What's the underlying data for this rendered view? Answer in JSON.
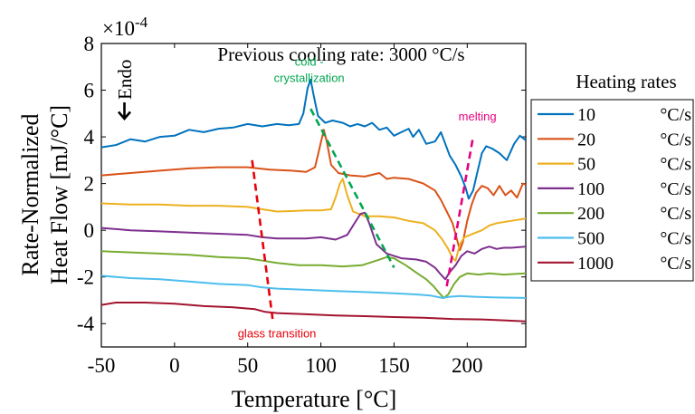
{
  "chart_data": {
    "type": "line",
    "title": "Previous cooling rate: 3000 °C/s",
    "xlabel": "Temperature [°C]",
    "ylabel_line1": "Rate-Normalized",
    "ylabel_line2": "Heat Flow [mJ/°C]",
    "y_exponent_label": "×10",
    "y_exponent_power": "-4",
    "xlim": [
      -50,
      240
    ],
    "ylim": [
      -5,
      8
    ],
    "x_ticks": [
      -50,
      0,
      50,
      100,
      150,
      200
    ],
    "x_tick_labels": [
      "-50",
      "0",
      "50",
      "100",
      "150",
      "200"
    ],
    "y_ticks": [
      -4,
      -2,
      0,
      2,
      4,
      6,
      8
    ],
    "y_tick_labels": [
      "-4",
      "-2",
      "0",
      "2",
      "4",
      "6",
      "8"
    ],
    "endo_label": "Endo",
    "legend": {
      "title": "Heating rates",
      "placement": "outside-right",
      "unit": "°C/s"
    },
    "series": [
      {
        "name": "10",
        "color": "#0072BD",
        "points": [
          [
            -50,
            3.55
          ],
          [
            -40,
            3.65
          ],
          [
            -30,
            3.9
          ],
          [
            -20,
            3.8
          ],
          [
            -10,
            4.0
          ],
          [
            0,
            4.05
          ],
          [
            10,
            4.3
          ],
          [
            20,
            4.2
          ],
          [
            30,
            4.35
          ],
          [
            40,
            4.4
          ],
          [
            50,
            4.55
          ],
          [
            60,
            4.45
          ],
          [
            70,
            4.55
          ],
          [
            78,
            4.5
          ],
          [
            85,
            4.55
          ],
          [
            88,
            5.0
          ],
          [
            91,
            6.1
          ],
          [
            93,
            6.45
          ],
          [
            95,
            5.8
          ],
          [
            98,
            4.9
          ],
          [
            103,
            4.6
          ],
          [
            108,
            4.7
          ],
          [
            115,
            4.6
          ],
          [
            120,
            4.45
          ],
          [
            125,
            4.55
          ],
          [
            130,
            4.45
          ],
          [
            135,
            4.6
          ],
          [
            140,
            4.3
          ],
          [
            145,
            4.4
          ],
          [
            150,
            4.05
          ],
          [
            155,
            4.2
          ],
          [
            160,
            4.35
          ],
          [
            163,
            4.0
          ],
          [
            167,
            4.3
          ],
          [
            172,
            3.7
          ],
          [
            178,
            3.8
          ],
          [
            182,
            4.2
          ],
          [
            185,
            3.7
          ],
          [
            188,
            3.2
          ],
          [
            192,
            2.8
          ],
          [
            196,
            2.3
          ],
          [
            199,
            1.8
          ],
          [
            201,
            1.35
          ],
          [
            204,
            1.7
          ],
          [
            207,
            2.5
          ],
          [
            210,
            3.3
          ],
          [
            213,
            3.6
          ],
          [
            217,
            3.5
          ],
          [
            222,
            3.3
          ],
          [
            227,
            3.0
          ],
          [
            232,
            3.7
          ],
          [
            236,
            4.05
          ],
          [
            240,
            3.85
          ]
        ]
      },
      {
        "name": "20",
        "color": "#D95319",
        "points": [
          [
            -50,
            2.35
          ],
          [
            -30,
            2.45
          ],
          [
            -10,
            2.55
          ],
          [
            10,
            2.65
          ],
          [
            30,
            2.7
          ],
          [
            50,
            2.7
          ],
          [
            65,
            2.6
          ],
          [
            80,
            2.55
          ],
          [
            90,
            2.5
          ],
          [
            96,
            2.7
          ],
          [
            99,
            3.5
          ],
          [
            102,
            4.3
          ],
          [
            104,
            3.8
          ],
          [
            107,
            2.8
          ],
          [
            112,
            2.45
          ],
          [
            120,
            2.35
          ],
          [
            130,
            2.3
          ],
          [
            140,
            2.45
          ],
          [
            145,
            2.2
          ],
          [
            150,
            2.25
          ],
          [
            160,
            2.2
          ],
          [
            170,
            2.0
          ],
          [
            178,
            1.7
          ],
          [
            182,
            1.3
          ],
          [
            186,
            0.8
          ],
          [
            190,
            0.3
          ],
          [
            193,
            -0.4
          ],
          [
            195,
            -0.85
          ],
          [
            197,
            -0.5
          ],
          [
            200,
            0.4
          ],
          [
            203,
            1.1
          ],
          [
            206,
            1.6
          ],
          [
            210,
            1.9
          ],
          [
            214,
            1.8
          ],
          [
            218,
            1.5
          ],
          [
            222,
            1.9
          ],
          [
            226,
            1.5
          ],
          [
            230,
            1.7
          ],
          [
            234,
            1.4
          ],
          [
            238,
            2.0
          ],
          [
            240,
            1.95
          ]
        ]
      },
      {
        "name": "50",
        "color": "#EDB120",
        "points": [
          [
            -50,
            1.15
          ],
          [
            -30,
            1.1
          ],
          [
            -10,
            1.1
          ],
          [
            10,
            1.05
          ],
          [
            30,
            1.05
          ],
          [
            50,
            1.0
          ],
          [
            60,
            0.9
          ],
          [
            70,
            0.8
          ],
          [
            80,
            0.82
          ],
          [
            90,
            0.85
          ],
          [
            100,
            0.85
          ],
          [
            107,
            0.9
          ],
          [
            110,
            1.4
          ],
          [
            113,
            2.0
          ],
          [
            115,
            2.2
          ],
          [
            118,
            1.5
          ],
          [
            122,
            0.8
          ],
          [
            130,
            0.6
          ],
          [
            140,
            0.6
          ],
          [
            150,
            0.55
          ],
          [
            160,
            0.4
          ],
          [
            170,
            0.3
          ],
          [
            178,
            0.0
          ],
          [
            183,
            -0.4
          ],
          [
            187,
            -0.8
          ],
          [
            190,
            -1.2
          ],
          [
            192,
            -1.3
          ],
          [
            195,
            -0.6
          ],
          [
            198,
            -0.3
          ],
          [
            202,
            -0.2
          ],
          [
            206,
            -0.1
          ],
          [
            210,
            0.0
          ],
          [
            215,
            0.2
          ],
          [
            220,
            0.3
          ],
          [
            230,
            0.4
          ],
          [
            240,
            0.5
          ]
        ]
      },
      {
        "name": "100",
        "color": "#7E2F8E",
        "points": [
          [
            -50,
            0.1
          ],
          [
            -30,
            0.0
          ],
          [
            -10,
            -0.05
          ],
          [
            10,
            -0.1
          ],
          [
            30,
            -0.15
          ],
          [
            50,
            -0.2
          ],
          [
            60,
            -0.3
          ],
          [
            70,
            -0.35
          ],
          [
            80,
            -0.35
          ],
          [
            90,
            -0.35
          ],
          [
            100,
            -0.3
          ],
          [
            110,
            -0.4
          ],
          [
            118,
            -0.2
          ],
          [
            123,
            0.3
          ],
          [
            127,
            0.7
          ],
          [
            130,
            0.75
          ],
          [
            133,
            0.3
          ],
          [
            138,
            -0.6
          ],
          [
            145,
            -1.0
          ],
          [
            155,
            -1.2
          ],
          [
            165,
            -1.25
          ],
          [
            172,
            -1.35
          ],
          [
            178,
            -1.6
          ],
          [
            182,
            -1.9
          ],
          [
            185,
            -2.1
          ],
          [
            188,
            -1.8
          ],
          [
            192,
            -1.5
          ],
          [
            196,
            -1.1
          ],
          [
            200,
            -0.9
          ],
          [
            205,
            -1.0
          ],
          [
            210,
            -0.8
          ],
          [
            215,
            -0.7
          ],
          [
            220,
            -0.8
          ],
          [
            225,
            -0.75
          ],
          [
            230,
            -0.75
          ],
          [
            240,
            -0.7
          ]
        ]
      },
      {
        "name": "200",
        "color": "#77AC30",
        "points": [
          [
            -50,
            -0.9
          ],
          [
            -30,
            -0.95
          ],
          [
            -10,
            -1.0
          ],
          [
            10,
            -1.05
          ],
          [
            30,
            -1.15
          ],
          [
            50,
            -1.2
          ],
          [
            60,
            -1.3
          ],
          [
            70,
            -1.4
          ],
          [
            85,
            -1.5
          ],
          [
            100,
            -1.5
          ],
          [
            115,
            -1.55
          ],
          [
            128,
            -1.5
          ],
          [
            138,
            -1.3
          ],
          [
            145,
            -1.15
          ],
          [
            150,
            -1.2
          ],
          [
            158,
            -1.5
          ],
          [
            166,
            -1.85
          ],
          [
            172,
            -2.1
          ],
          [
            177,
            -2.4
          ],
          [
            181,
            -2.7
          ],
          [
            184,
            -2.9
          ],
          [
            187,
            -2.75
          ],
          [
            191,
            -2.3
          ],
          [
            195,
            -2.0
          ],
          [
            200,
            -1.85
          ],
          [
            208,
            -1.9
          ],
          [
            215,
            -1.85
          ],
          [
            225,
            -1.9
          ],
          [
            240,
            -1.85
          ]
        ]
      },
      {
        "name": "500",
        "color": "#4DBEEE",
        "points": [
          [
            -50,
            -1.95
          ],
          [
            -30,
            -2.05
          ],
          [
            -10,
            -2.1
          ],
          [
            10,
            -2.2
          ],
          [
            30,
            -2.3
          ],
          [
            50,
            -2.35
          ],
          [
            60,
            -2.45
          ],
          [
            70,
            -2.5
          ],
          [
            90,
            -2.55
          ],
          [
            110,
            -2.6
          ],
          [
            130,
            -2.65
          ],
          [
            150,
            -2.7
          ],
          [
            165,
            -2.75
          ],
          [
            175,
            -2.8
          ],
          [
            183,
            -2.9
          ],
          [
            188,
            -2.85
          ],
          [
            195,
            -2.82
          ],
          [
            205,
            -2.85
          ],
          [
            220,
            -2.88
          ],
          [
            240,
            -2.9
          ]
        ]
      },
      {
        "name": "1000",
        "color": "#A2142F",
        "points": [
          [
            -50,
            -3.2
          ],
          [
            -40,
            -3.1
          ],
          [
            -20,
            -3.1
          ],
          [
            0,
            -3.15
          ],
          [
            20,
            -3.25
          ],
          [
            40,
            -3.3
          ],
          [
            55,
            -3.38
          ],
          [
            62,
            -3.5
          ],
          [
            70,
            -3.55
          ],
          [
            90,
            -3.6
          ],
          [
            110,
            -3.65
          ],
          [
            130,
            -3.68
          ],
          [
            150,
            -3.72
          ],
          [
            170,
            -3.75
          ],
          [
            190,
            -3.8
          ],
          [
            210,
            -3.82
          ],
          [
            225,
            -3.86
          ],
          [
            240,
            -3.9
          ]
        ]
      }
    ],
    "annotations": [
      {
        "text": "cold -",
        "color": "#00A651",
        "x": 92,
        "y": 7.05
      },
      {
        "text": "crystallization",
        "color": "#00A651",
        "x": 92,
        "y": 6.35
      },
      {
        "text": "melting",
        "color": "#E6007E",
        "x": 207,
        "y": 4.7
      },
      {
        "text": "glass transition",
        "color": "#E8000B",
        "x": 70,
        "y": -4.6
      }
    ],
    "trend_lines": [
      {
        "name": "glass-transition",
        "color": "#E8000B",
        "points": [
          [
            53,
            3.0
          ],
          [
            67,
            -3.8
          ]
        ]
      },
      {
        "name": "cold-crystallization",
        "color": "#00A651",
        "points": [
          [
            93,
            5.2
          ],
          [
            150,
            -1.6
          ]
        ]
      },
      {
        "name": "melting",
        "color": "#E6007E",
        "points": [
          [
            186,
            -2.4
          ],
          [
            204,
            4.0
          ]
        ]
      }
    ]
  }
}
